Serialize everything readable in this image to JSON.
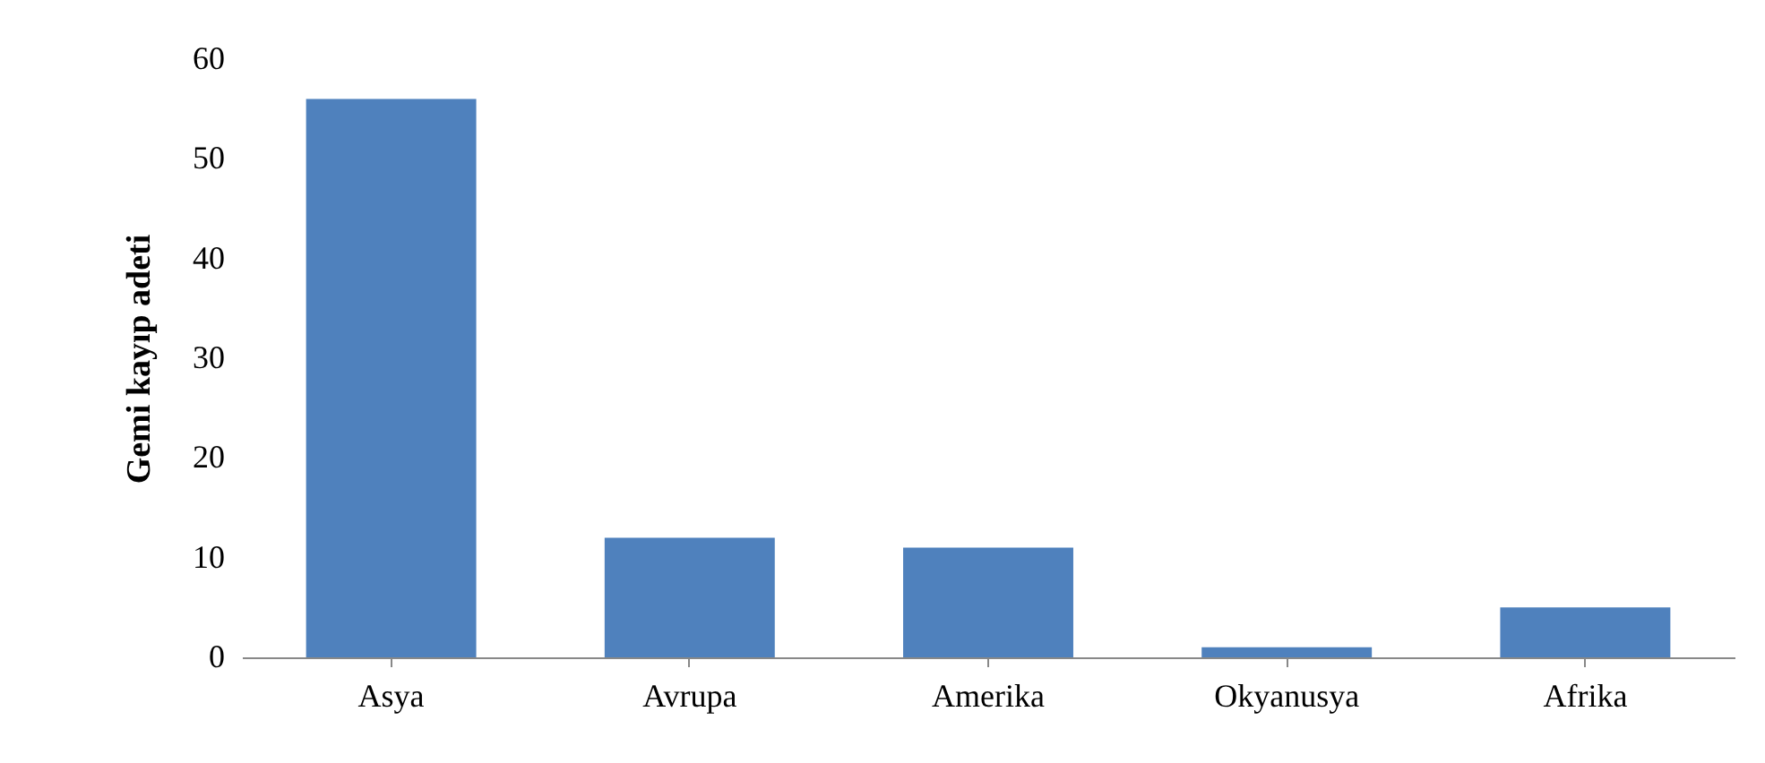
{
  "chart_data": {
    "type": "bar",
    "ylabel": "Gemi kayıp adeti",
    "categories": [
      "Asya",
      "Avrupa",
      "Amerika",
      "Okyanusya",
      "Afrika"
    ],
    "values": [
      56,
      12,
      11,
      1,
      5
    ],
    "color": "#4f81bd",
    "ylim": [
      0,
      60
    ],
    "yticks": [
      0,
      10,
      20,
      30,
      40,
      50,
      60
    ],
    "grid": false
  }
}
